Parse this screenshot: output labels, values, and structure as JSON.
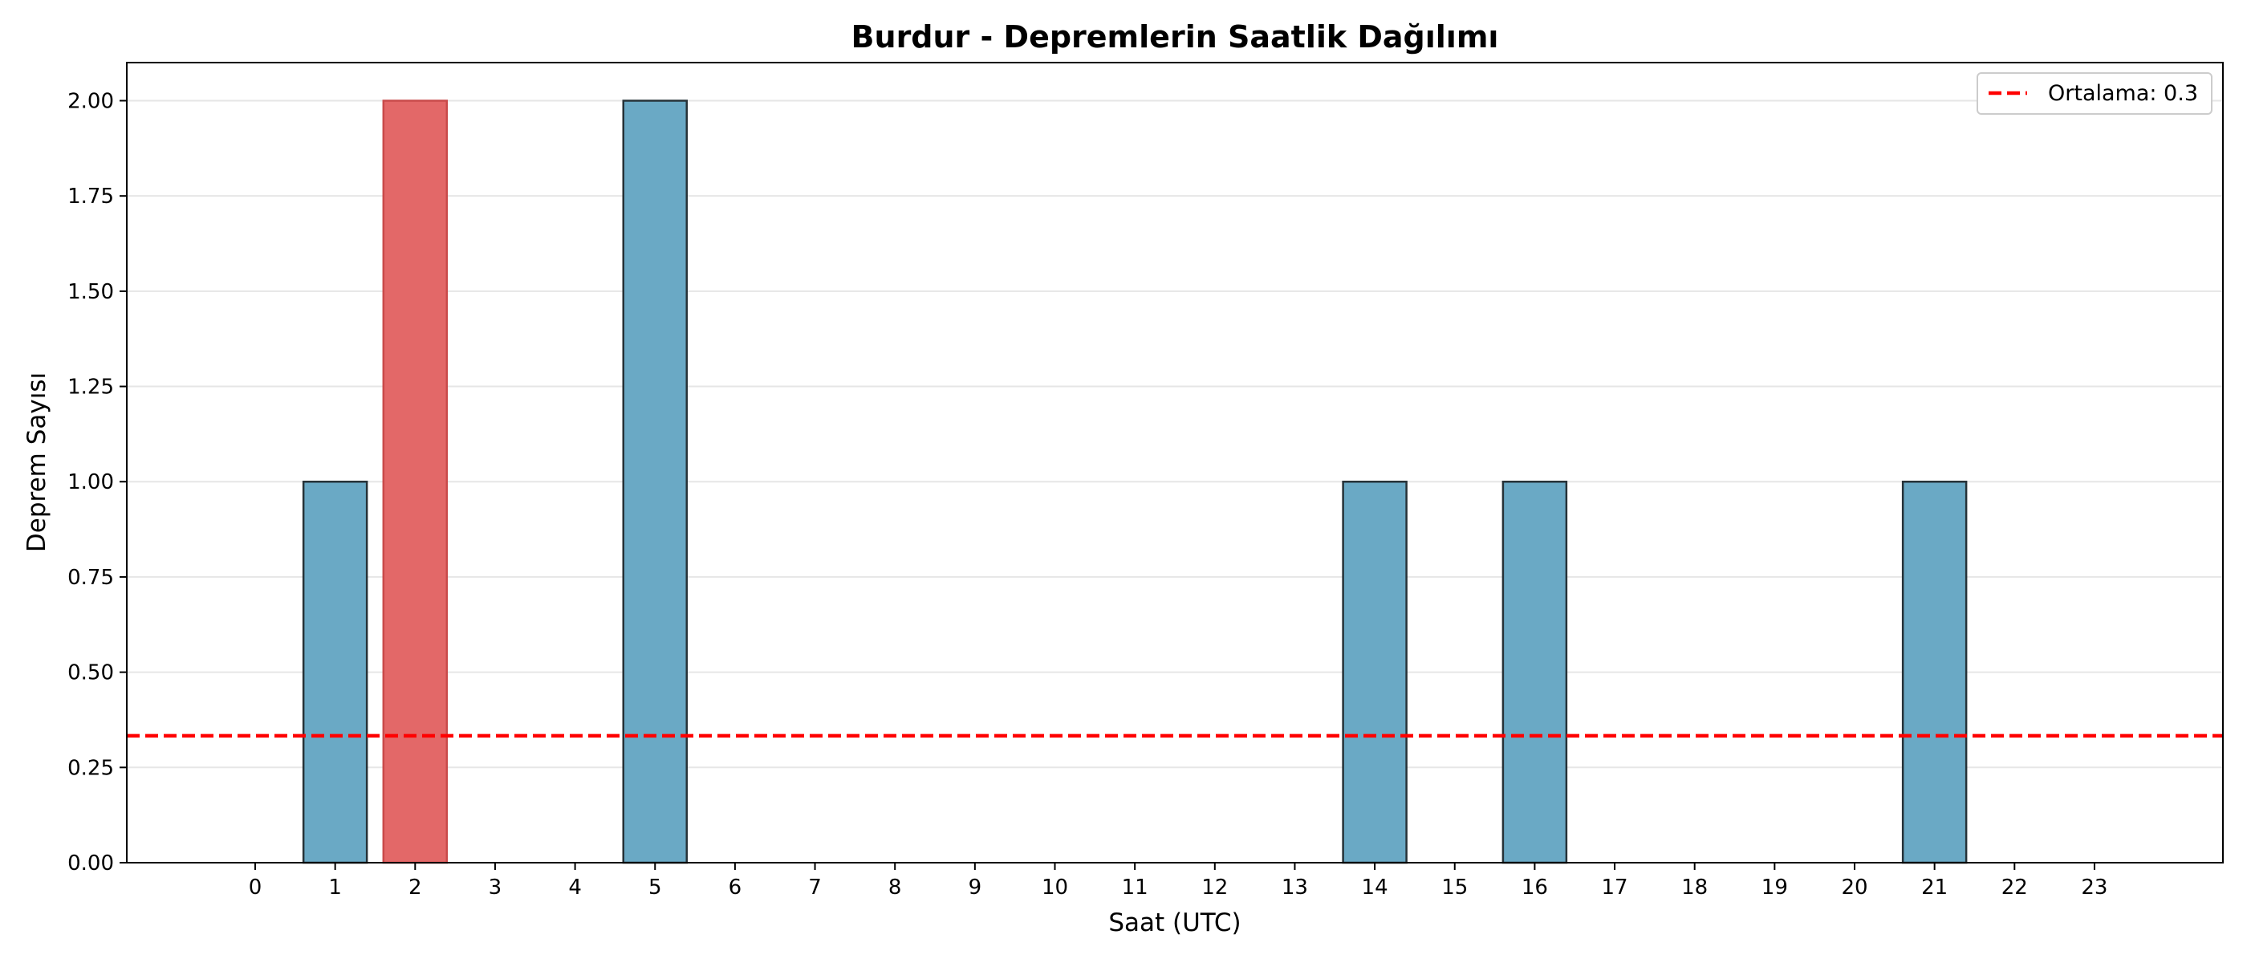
{
  "chart_data": {
    "type": "bar",
    "title": "Burdur - Depremlerin Saatlik Dağılımı",
    "xlabel": "Saat (UTC)",
    "ylabel": "Deprem Sayısı",
    "categories": [
      "0",
      "1",
      "2",
      "3",
      "4",
      "5",
      "6",
      "7",
      "8",
      "9",
      "10",
      "11",
      "12",
      "13",
      "14",
      "15",
      "16",
      "17",
      "18",
      "19",
      "20",
      "21",
      "22",
      "23"
    ],
    "values": [
      0,
      1,
      2,
      0,
      0,
      2,
      0,
      0,
      0,
      0,
      0,
      0,
      0,
      0,
      1,
      0,
      1,
      0,
      0,
      0,
      0,
      1,
      0,
      0
    ],
    "highlight_index": 2,
    "ylim": [
      0,
      2.1
    ],
    "yticks": [
      0,
      0.25,
      0.5,
      0.75,
      1.0,
      1.25,
      1.5,
      1.75,
      2.0
    ],
    "ytick_labels": [
      "0.00",
      "0.25",
      "0.50",
      "0.75",
      "1.00",
      "1.25",
      "1.50",
      "1.75",
      "2.00"
    ],
    "mean_line": {
      "value": 0.333,
      "label": "Ortalama: 0.3"
    },
    "grid": "horizontal",
    "legend_position": "top-right",
    "colors": {
      "bar": "#6aa9c5",
      "highlight_bar": "#e36868",
      "mean_line": "#ff0000",
      "bar_edge": "#263238",
      "grid": "#e6e6e6"
    }
  }
}
